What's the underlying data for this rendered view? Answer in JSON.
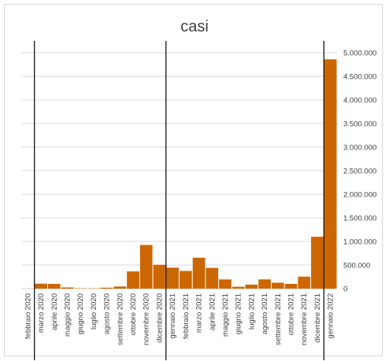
{
  "chart_data": {
    "type": "bar",
    "title": "casi",
    "xlabel": "",
    "ylabel": "",
    "y_axis_position": "right",
    "ylim": [
      0,
      5000000
    ],
    "y_ticks": [
      0,
      500000,
      1000000,
      1500000,
      2000000,
      2500000,
      3000000,
      3500000,
      4000000,
      4500000,
      5000000
    ],
    "y_tick_labels": [
      "0",
      "500.000",
      "1.000.000",
      "1.500.000",
      "2.000.000",
      "2.500.000",
      "3.000.000",
      "3.500.000",
      "4.000.000",
      "4.500.000",
      "5.000.000"
    ],
    "grid": true,
    "bar_color": "#cc6600",
    "grid_color": "#d9d9d9",
    "marker_color": "#000000",
    "categories": [
      "febbraio 2020",
      "marzo 2020",
      "aprile 2020",
      "maggio 2020",
      "giugno 2020",
      "luglio 2020",
      "agosto 2020",
      "settembre 2020",
      "ottobre 2020",
      "novembre 2020",
      "dicembre 2020",
      "gennaio 2021",
      "febbraio 2021",
      "marzo 2021",
      "aprile 2021",
      "maggio 2021",
      "giugno 2021",
      "luglio 2021",
      "agosto 2021",
      "settembre 2021",
      "ottobre 2021",
      "novembre 2021",
      "dicembre 2021",
      "gennaio 2022"
    ],
    "values": [
      1000,
      105000,
      100000,
      25000,
      7000,
      6000,
      20000,
      45000,
      365000,
      925000,
      505000,
      445000,
      375000,
      655000,
      440000,
      195000,
      40000,
      85000,
      195000,
      125000,
      100000,
      255000,
      1100000,
      4860000
    ],
    "vertical_markers_after": [
      "febbraio 2020",
      "dicembre 2020",
      "dicembre 2021"
    ]
  }
}
